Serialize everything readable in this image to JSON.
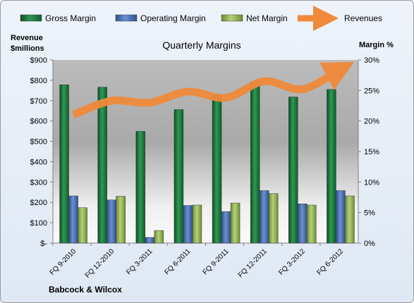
{
  "chart_data": {
    "type": "bar",
    "title": "Quarterly Margins",
    "categories": [
      "FQ 9-2010",
      "FQ 12-2010",
      "FQ 3-2011",
      "FQ 6-2011",
      "FQ 9-2011",
      "FQ 12-2011",
      "FQ 3-2012",
      "FQ 6-2012"
    ],
    "y_left": {
      "label_line1": "Revenue",
      "label_line2": "$millions",
      "ticks": [
        "$-",
        "$100",
        "$200",
        "$300",
        "$400",
        "$500",
        "$600",
        "$700",
        "$800",
        "$900"
      ],
      "range": [
        0,
        900
      ]
    },
    "y_right": {
      "label": "Margin %",
      "ticks": [
        "0%",
        "5%",
        "10%",
        "15%",
        "20%",
        "25%",
        "30%"
      ],
      "range": [
        0,
        30
      ]
    },
    "series": [
      {
        "name": "Gross Margin",
        "axis": "left",
        "color": "#1e7a3e",
        "values": [
          778,
          766,
          549,
          656,
          730,
          792,
          718,
          755
        ]
      },
      {
        "name": "Operating Margin",
        "axis": "left",
        "color": "#4f74b8",
        "values": [
          232,
          212,
          28,
          185,
          155,
          258,
          193,
          258
        ]
      },
      {
        "name": "Net Margin",
        "axis": "left",
        "color": "#9bbb59",
        "values": [
          174,
          230,
          62,
          187,
          197,
          243,
          187,
          232
        ]
      },
      {
        "name": "Revenues",
        "axis": "right",
        "type": "line",
        "color": "#f08a3a",
        "values": [
          21.0,
          23.3,
          23.0,
          24.8,
          23.8,
          26.5,
          25.2,
          28.5
        ]
      }
    ],
    "legend_position": "top",
    "grid": false,
    "footer_label": "Babcock & Wilcox"
  }
}
